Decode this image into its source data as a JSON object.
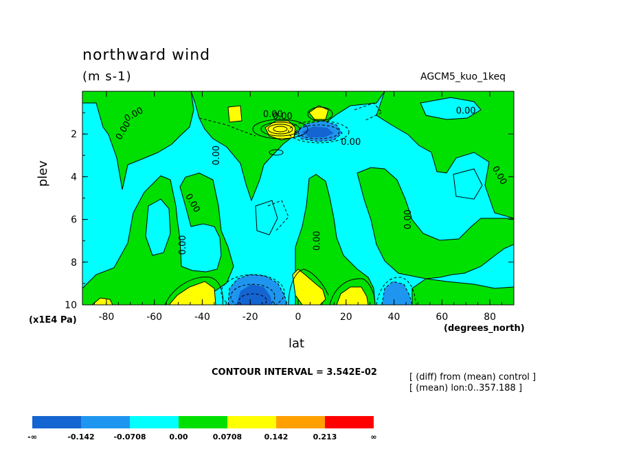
{
  "title": "northward wind",
  "units": "(m s-1)",
  "model_label": "AGCM5_kuo_1keq",
  "contour_interval": "CONTOUR INTERVAL = 3.542E-02",
  "notes": [
    "[ (diff) from (mean) control ]",
    "[ (mean) lon:0..357.188 ]"
  ],
  "chart_data": {
    "type": "contour",
    "title": "northward wind",
    "units": "(m s-1)",
    "xlabel": "lat",
    "x_units": "(degrees_north)",
    "ylabel": "plev",
    "y_multiplier": "(x1E4 Pa)",
    "xlim": [
      -90,
      90
    ],
    "ylim": [
      10,
      0
    ],
    "x_ticks": [
      -80,
      -60,
      -40,
      -20,
      0,
      20,
      40,
      60,
      80
    ],
    "x_tick_labels": [
      "-80",
      "-60",
      "-40",
      "-20",
      "0",
      "20",
      "40",
      "60",
      "80"
    ],
    "y_ticks": [
      2,
      4,
      6,
      8,
      10
    ],
    "y_tick_labels": [
      "2",
      "4",
      "6",
      "8",
      "10"
    ],
    "contour_labels": [
      "0.00"
    ],
    "colorbar": {
      "colors": [
        "#1464d2",
        "#1e96f0",
        "#00ffff",
        "#00e000",
        "#ffff00",
        "#ffa000",
        "#ff0000"
      ],
      "labels": [
        "-∞",
        "-0.142",
        "-0.0708",
        "0.00",
        "0.0708",
        "0.142",
        "0.213",
        "∞"
      ]
    }
  }
}
